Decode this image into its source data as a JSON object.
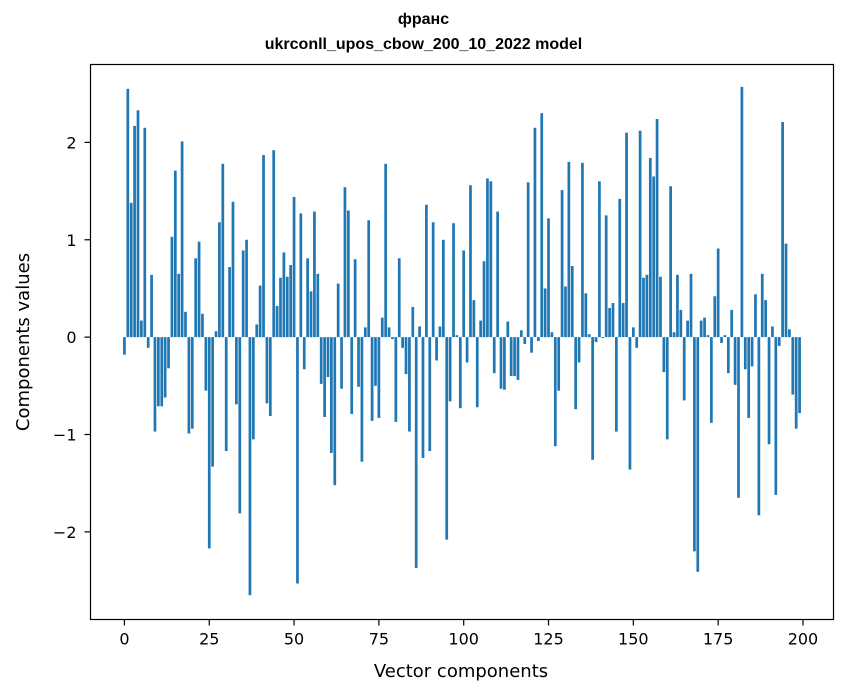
{
  "chart_data": {
    "type": "bar",
    "title": "франс",
    "subtitle": "ukrconll_upos_cbow_200_10_2022 model",
    "xlabel": "Vector components",
    "ylabel": "Components values",
    "xlim": [
      -10,
      209
    ],
    "ylim": [
      -2.9,
      2.8
    ],
    "xticks": [
      0,
      25,
      50,
      75,
      100,
      125,
      150,
      175,
      200
    ],
    "yticks": [
      -2,
      -1,
      0,
      1,
      2
    ],
    "ytick_labels": [
      "−2",
      "−1",
      "0",
      "1",
      "2"
    ],
    "grid": false,
    "color": "#1f77b4",
    "values": [
      -0.18,
      2.55,
      1.38,
      2.17,
      2.33,
      0.17,
      2.15,
      -0.11,
      0.64,
      -0.97,
      -0.71,
      -0.71,
      -0.62,
      -0.32,
      1.03,
      1.71,
      0.65,
      2.01,
      0.26,
      -0.99,
      -0.94,
      0.81,
      0.98,
      0.24,
      -0.55,
      -2.17,
      -1.33,
      0.06,
      1.18,
      1.78,
      -1.17,
      0.72,
      1.39,
      -0.69,
      -1.81,
      0.89,
      1.0,
      -2.65,
      -1.05,
      0.13,
      0.53,
      1.87,
      -0.68,
      -0.81,
      1.92,
      0.32,
      0.61,
      0.87,
      0.62,
      0.74,
      1.44,
      -2.53,
      1.27,
      -0.33,
      0.81,
      0.47,
      1.29,
      0.65,
      -0.48,
      -0.82,
      -0.41,
      -1.19,
      -1.52,
      0.55,
      -0.53,
      1.54,
      1.3,
      -0.79,
      0.8,
      -0.51,
      -1.28,
      0.1,
      1.2,
      -0.86,
      -0.5,
      -0.83,
      0.2,
      1.78,
      0.1,
      -0.02,
      -0.87,
      0.81,
      -0.11,
      -0.38,
      -0.97,
      0.31,
      -2.37,
      0.11,
      -1.24,
      1.36,
      -1.17,
      1.18,
      -0.24,
      0.11,
      1.0,
      -2.08,
      -0.66,
      1.17,
      0.02,
      -0.73,
      0.89,
      -0.26,
      1.56,
      0.38,
      -0.72,
      0.17,
      0.78,
      1.63,
      1.6,
      -0.37,
      1.29,
      -0.53,
      -0.54,
      0.16,
      -0.4,
      -0.4,
      -0.44,
      0.07,
      -0.07,
      1.59,
      -0.16,
      2.15,
      -0.04,
      2.3,
      0.5,
      1.22,
      0.05,
      -1.12,
      -0.55,
      1.51,
      0.52,
      1.8,
      0.73,
      -0.74,
      -0.26,
      1.79,
      0.45,
      0.03,
      -1.26,
      -0.05,
      1.6,
      -0.01,
      1.25,
      0.3,
      0.35,
      -0.97,
      1.42,
      0.35,
      2.1,
      -1.36,
      0.1,
      -0.11,
      2.12,
      0.61,
      0.64,
      1.84,
      1.65,
      2.24,
      0.62,
      -0.36,
      -1.05,
      1.55,
      0.05,
      0.64,
      0.28,
      -0.65,
      0.17,
      0.65,
      -2.2,
      -2.41,
      0.17,
      0.2,
      0.02,
      -0.88,
      0.42,
      0.91,
      -0.06,
      0.02,
      -0.37,
      0.28,
      -0.49,
      -1.65,
      2.57,
      -0.33,
      -0.83,
      -0.3,
      0.44,
      -1.83,
      0.65,
      0.38,
      -1.1,
      0.11,
      -1.62,
      -0.09,
      2.21,
      0.96,
      0.08,
      -0.59,
      -0.94,
      -0.78
    ]
  }
}
